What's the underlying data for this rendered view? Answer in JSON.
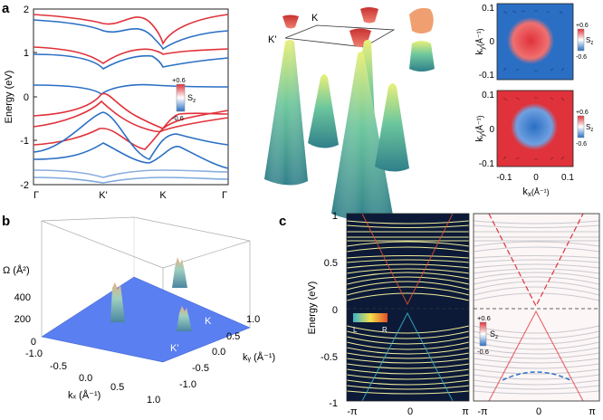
{
  "panels": {
    "a": {
      "label": "a",
      "band_plot": {
        "ylabel": "Energy (eV)",
        "yticks": [
          "2",
          "1",
          "0",
          "-1",
          "-2"
        ],
        "xticks": [
          "Γ",
          "K'",
          "K",
          "Γ"
        ],
        "colorbar": {
          "max": "+0.6",
          "min": "-0.6",
          "var": "S",
          "sub": "z"
        }
      },
      "cone_3d": {
        "k_label": "K",
        "kprime_label": "K'"
      },
      "spin_maps": {
        "ylabel_top": "k",
        "ylabel_sub": "y",
        "ylabel_unit": "(Å⁻¹)",
        "xlabel": "k",
        "xlabel_sub": "x",
        "xlabel_unit": "(Å⁻¹)",
        "yticks": [
          "0.1",
          "0",
          "-0.1"
        ],
        "xticks": [
          "-0.1",
          "0",
          "0.1"
        ],
        "colorbar": {
          "max": "+0.6",
          "min": "-0.6",
          "var": "S",
          "sub": "z"
        }
      }
    },
    "b": {
      "label": "b",
      "zlabel": "Ω (Å²)",
      "zticks": [
        "400",
        "200",
        "0"
      ],
      "xticks": [
        "-1.0",
        "-0.5",
        "0.0",
        "0.5",
        "1.0"
      ],
      "yticks": [
        "1.0",
        "0.5",
        "0.0",
        "-0.5",
        "-1.0"
      ],
      "xlabel": "kₓ (Å⁻¹)",
      "ylabel": "kᵧ (Å⁻¹)",
      "k_label": "K",
      "kprime_label": "K'"
    },
    "c": {
      "label": "c",
      "ylabel": "Energy (eV)",
      "yticks": [
        "1",
        "0.5",
        "0",
        "-0.5",
        "-1"
      ],
      "xticks_left": [
        "-π",
        "0",
        "π"
      ],
      "xticks_right": [
        "-π",
        "0",
        "π"
      ],
      "lr_legend": {
        "left": "L",
        "right": "R"
      },
      "colorbar": {
        "max": "+0.6",
        "min": "-0.6",
        "var": "S",
        "sub": "z"
      }
    }
  },
  "colors": {
    "spin_up": "#e0323a",
    "spin_down": "#2a6fc4",
    "cone": "#4fae9a",
    "berry_plane": "#5a7ff0",
    "dark_bg": "#0c1a38",
    "yellow_line": "#f1ec9a"
  }
}
